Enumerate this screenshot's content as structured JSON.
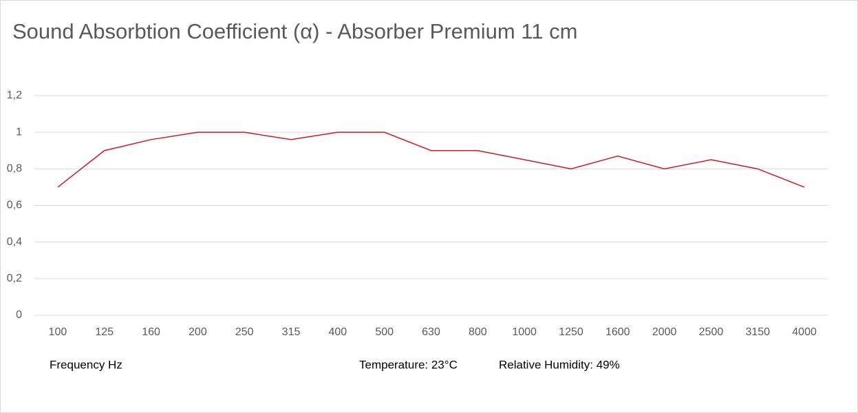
{
  "chart_data": {
    "type": "line",
    "title": "Sound Absorbtion Coefficient (α) - Absorber Premium 11 cm",
    "x_label": "Frequency Hz",
    "annotations": [
      "Temperature:  23°C",
      "Relative Humidity: 49%"
    ],
    "categories": [
      "100",
      "125",
      "160",
      "200",
      "250",
      "315",
      "400",
      "500",
      "630",
      "800",
      "1000",
      "1250",
      "1600",
      "2000",
      "2500",
      "3150",
      "4000"
    ],
    "series": [
      {
        "name": "Sound Absorbtion Coefficient (α)",
        "color": "#d0191f",
        "values": [
          0.7,
          0.9,
          0.96,
          1,
          1,
          0.96,
          1,
          1,
          0.9,
          0.9,
          0.85,
          0.8,
          0.87,
          0.8,
          0.85,
          0.8,
          0.7
        ]
      }
    ],
    "ylim": [
      0,
      1.2
    ],
    "yticks": [
      0,
      {
        "value": 0.2,
        "label": "0,2"
      },
      {
        "value": 0.4,
        "label": "0,4"
      },
      {
        "value": 0.6,
        "label": "0,6"
      },
      {
        "value": 0.8,
        "label": "0,8"
      },
      1,
      {
        "value": 1.2,
        "label": "1,2"
      }
    ],
    "grid": true
  }
}
